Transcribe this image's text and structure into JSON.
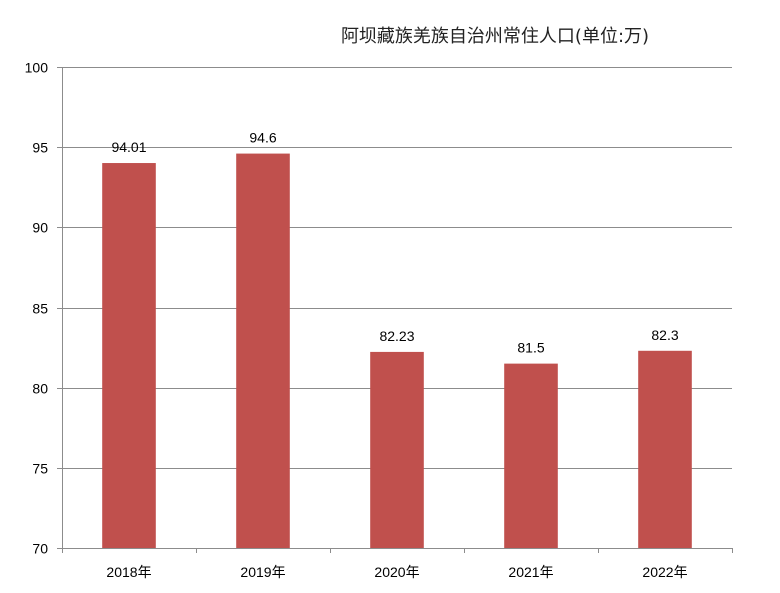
{
  "chart_data": {
    "type": "bar",
    "title": "阿坝藏族羌族自治州常住人口(单位:万)",
    "categories": [
      "2018年",
      "2019年",
      "2020年",
      "2021年",
      "2022年"
    ],
    "values": [
      94.01,
      94.6,
      82.23,
      81.5,
      82.3
    ],
    "data_labels": [
      "94.01",
      "94.6",
      "82.23",
      "81.5",
      "82.3"
    ],
    "ylim": [
      70,
      100
    ],
    "yticks": [
      70,
      75,
      80,
      85,
      90,
      95,
      100
    ],
    "ytick_labels": [
      "70",
      "75",
      "80",
      "85",
      "90",
      "95",
      "100"
    ],
    "xlabel": "",
    "ylabel": "",
    "grid": true,
    "legend": "none",
    "bar_color": "#c0504d"
  }
}
